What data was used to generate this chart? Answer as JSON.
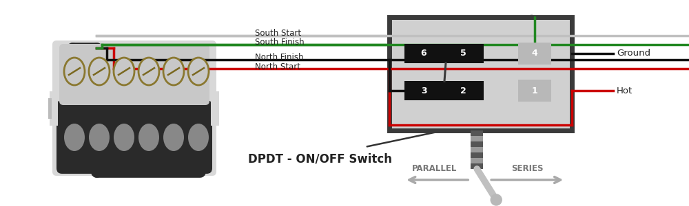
{
  "bg_color": "#ffffff",
  "pickup_body_color": "#2a2a2a",
  "pickup_cover_color": "#c8c8c8",
  "pickup_bg_color": "#d8d8d8",
  "switch_box_bg": "#d0d0d0",
  "switch_box_border": "#3a3a3a",
  "switch_contact_color": "#111111",
  "switch_terminal_color": "#b8b8b8",
  "wire_red": "#cc0000",
  "wire_black": "#111111",
  "wire_green": "#228822",
  "wire_gray": "#c0c0c0",
  "label_color": "#222222",
  "arrow_color": "#aaaaaa",
  "title_text": "DPDT - ON/OFF Switch",
  "parallel_text": "PARALLEL",
  "series_text": "SERIES",
  "hot_text": "Hot",
  "ground_text": "Ground",
  "north_start_text": "North Start",
  "north_finish_text": "North Finish",
  "south_finish_text": "South Finish",
  "south_start_text": "South Start",
  "figw": 10.0,
  "figh": 3.0,
  "dpi": 100
}
